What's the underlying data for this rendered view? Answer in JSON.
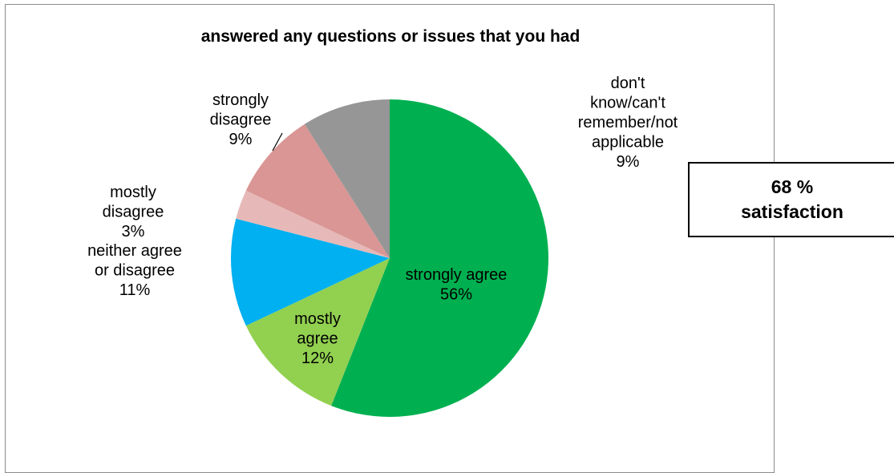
{
  "chart_data": {
    "type": "pie",
    "title": "answered any questions or issues that you had",
    "slices": [
      {
        "label": "strongly agree",
        "value": 56,
        "display": "56%",
        "color": "#00b050"
      },
      {
        "label": "mostly agree",
        "value": 12,
        "display": "12%",
        "color": "#92d050"
      },
      {
        "label": "neither agree or disagree",
        "value": 11,
        "display": "11%",
        "color": "#00b0f0"
      },
      {
        "label": "mostly disagree",
        "value": 3,
        "display": "3%",
        "color": "#e6b9b8"
      },
      {
        "label": "strongly disagree",
        "value": 9,
        "display": "9%",
        "color": "#d99694"
      },
      {
        "label": "don't know/can't remember/not applicable",
        "value": 9,
        "display": "9%",
        "color": "#969696"
      }
    ]
  },
  "callout": {
    "text": "68 %\nsatisfaction"
  }
}
